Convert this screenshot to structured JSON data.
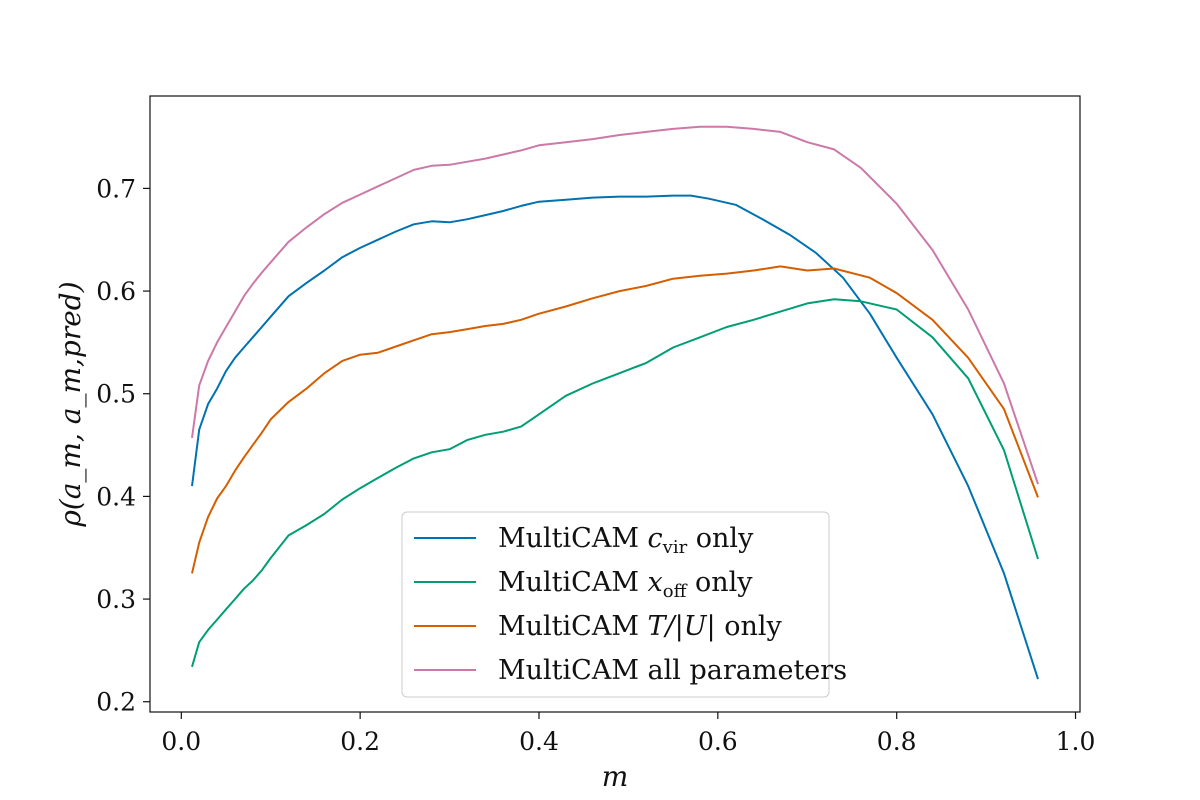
{
  "chart_data": {
    "type": "line",
    "title": "",
    "xlabel": "m",
    "ylabel": "ρ(a_m, a_m,pred)",
    "xlim": [
      -0.035,
      1.005
    ],
    "ylim": [
      0.19,
      0.79
    ],
    "xticks": [
      0.0,
      0.2,
      0.4,
      0.6,
      0.8,
      1.0
    ],
    "xtick_labels": [
      "0.0",
      "0.2",
      "0.4",
      "0.6",
      "0.8",
      "1.0"
    ],
    "yticks": [
      0.2,
      0.3,
      0.4,
      0.5,
      0.6,
      0.7
    ],
    "ytick_labels": [
      "0.2",
      "0.3",
      "0.4",
      "0.5",
      "0.6",
      "0.7"
    ],
    "grid": false,
    "legend_position": "lower-center",
    "series": [
      {
        "name": "MultiCAM c_vir only",
        "legend_main": "MultiCAM ",
        "legend_var": "c",
        "legend_sub": "vir",
        "legend_tail": " only",
        "color": "#0072b2",
        "x": [
          0.012,
          0.02,
          0.03,
          0.04,
          0.05,
          0.06,
          0.07,
          0.08,
          0.09,
          0.1,
          0.12,
          0.14,
          0.16,
          0.18,
          0.2,
          0.22,
          0.24,
          0.26,
          0.28,
          0.3,
          0.32,
          0.34,
          0.36,
          0.38,
          0.4,
          0.43,
          0.46,
          0.49,
          0.52,
          0.55,
          0.57,
          0.59,
          0.62,
          0.65,
          0.68,
          0.71,
          0.74,
          0.77,
          0.8,
          0.84,
          0.88,
          0.92,
          0.958
        ],
        "y": [
          0.41,
          0.465,
          0.49,
          0.505,
          0.522,
          0.535,
          0.545,
          0.555,
          0.565,
          0.575,
          0.595,
          0.608,
          0.62,
          0.633,
          0.642,
          0.65,
          0.658,
          0.665,
          0.668,
          0.667,
          0.67,
          0.674,
          0.678,
          0.683,
          0.687,
          0.689,
          0.691,
          0.692,
          0.692,
          0.693,
          0.693,
          0.69,
          0.684,
          0.67,
          0.655,
          0.637,
          0.613,
          0.578,
          0.535,
          0.48,
          0.41,
          0.325,
          0.222
        ]
      },
      {
        "name": "MultiCAM x_off only",
        "legend_main": "MultiCAM ",
        "legend_var": "x",
        "legend_sub": "off",
        "legend_tail": " only",
        "color": "#009e73",
        "x": [
          0.012,
          0.02,
          0.03,
          0.04,
          0.05,
          0.06,
          0.07,
          0.08,
          0.09,
          0.1,
          0.12,
          0.14,
          0.16,
          0.18,
          0.2,
          0.22,
          0.24,
          0.26,
          0.28,
          0.3,
          0.32,
          0.34,
          0.36,
          0.38,
          0.4,
          0.43,
          0.46,
          0.49,
          0.52,
          0.55,
          0.58,
          0.61,
          0.64,
          0.67,
          0.7,
          0.73,
          0.76,
          0.8,
          0.84,
          0.88,
          0.92,
          0.958
        ],
        "y": [
          0.234,
          0.258,
          0.27,
          0.28,
          0.29,
          0.3,
          0.31,
          0.318,
          0.328,
          0.34,
          0.362,
          0.372,
          0.383,
          0.397,
          0.408,
          0.418,
          0.428,
          0.437,
          0.443,
          0.446,
          0.455,
          0.46,
          0.463,
          0.468,
          0.48,
          0.498,
          0.51,
          0.52,
          0.53,
          0.545,
          0.555,
          0.565,
          0.572,
          0.58,
          0.588,
          0.592,
          0.59,
          0.582,
          0.555,
          0.515,
          0.445,
          0.339
        ]
      },
      {
        "name": "MultiCAM T/|U| only",
        "legend_main": "MultiCAM ",
        "legend_var": "T/|U|",
        "legend_sub": "",
        "legend_tail": " only",
        "color": "#d55e00",
        "x": [
          0.012,
          0.02,
          0.03,
          0.04,
          0.05,
          0.06,
          0.07,
          0.08,
          0.09,
          0.1,
          0.12,
          0.14,
          0.16,
          0.18,
          0.2,
          0.22,
          0.24,
          0.26,
          0.28,
          0.3,
          0.32,
          0.34,
          0.36,
          0.38,
          0.4,
          0.43,
          0.46,
          0.49,
          0.52,
          0.55,
          0.58,
          0.61,
          0.64,
          0.67,
          0.7,
          0.73,
          0.77,
          0.8,
          0.84,
          0.88,
          0.92,
          0.958
        ],
        "y": [
          0.325,
          0.355,
          0.38,
          0.398,
          0.41,
          0.425,
          0.438,
          0.45,
          0.462,
          0.475,
          0.492,
          0.505,
          0.52,
          0.532,
          0.538,
          0.54,
          0.546,
          0.552,
          0.558,
          0.56,
          0.563,
          0.566,
          0.568,
          0.572,
          0.578,
          0.585,
          0.593,
          0.6,
          0.605,
          0.612,
          0.615,
          0.617,
          0.62,
          0.624,
          0.62,
          0.622,
          0.613,
          0.598,
          0.572,
          0.535,
          0.485,
          0.399
        ]
      },
      {
        "name": "MultiCAM all parameters",
        "legend_main": "MultiCAM all parameters",
        "legend_var": "",
        "legend_sub": "",
        "legend_tail": "",
        "color": "#cc79a7",
        "x": [
          0.012,
          0.02,
          0.03,
          0.04,
          0.05,
          0.06,
          0.07,
          0.08,
          0.09,
          0.1,
          0.12,
          0.14,
          0.16,
          0.18,
          0.2,
          0.22,
          0.24,
          0.26,
          0.28,
          0.3,
          0.32,
          0.34,
          0.36,
          0.38,
          0.4,
          0.43,
          0.46,
          0.49,
          0.52,
          0.55,
          0.58,
          0.61,
          0.64,
          0.67,
          0.7,
          0.73,
          0.76,
          0.8,
          0.84,
          0.88,
          0.92,
          0.958
        ],
        "y": [
          0.457,
          0.508,
          0.532,
          0.55,
          0.565,
          0.58,
          0.595,
          0.607,
          0.618,
          0.628,
          0.648,
          0.662,
          0.675,
          0.686,
          0.694,
          0.702,
          0.71,
          0.718,
          0.722,
          0.723,
          0.726,
          0.729,
          0.733,
          0.737,
          0.742,
          0.745,
          0.748,
          0.752,
          0.755,
          0.758,
          0.76,
          0.76,
          0.758,
          0.755,
          0.745,
          0.738,
          0.72,
          0.685,
          0.64,
          0.582,
          0.51,
          0.412
        ]
      }
    ]
  }
}
